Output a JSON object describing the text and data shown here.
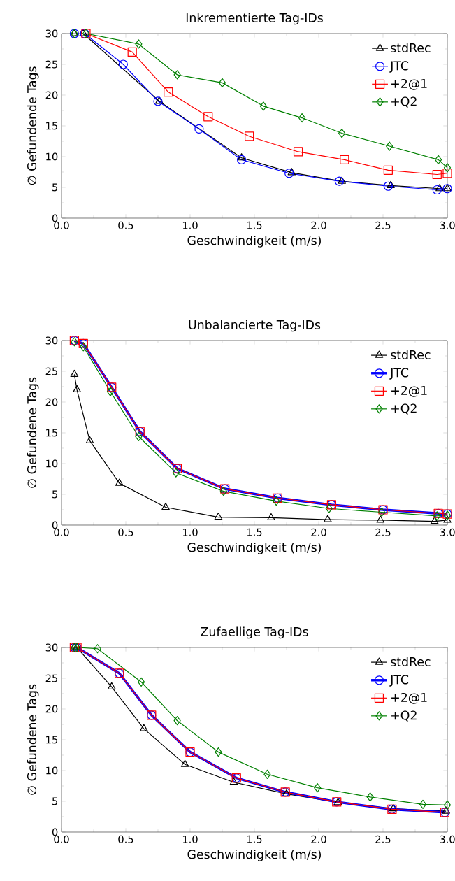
{
  "chart_data": [
    {
      "type": "line",
      "title": "Inkrementierte Tag-IDs",
      "xlabel": "Geschwindigkeit (m/s)",
      "ylabel": "∅ Gefundende Tags",
      "xlim": [
        0,
        3
      ],
      "ylim": [
        0,
        30
      ],
      "xticks": [
        {
          "value": 0,
          "label": "0.0"
        },
        {
          "value": 0.5,
          "label": "0.5"
        },
        {
          "value": 1,
          "label": "1.0"
        },
        {
          "value": 1.5,
          "label": "1.5"
        },
        {
          "value": 2,
          "label": "2.0"
        },
        {
          "value": 2.5,
          "label": "2.5"
        },
        {
          "value": 3,
          "label": "3.0"
        }
      ],
      "yticks": [
        0,
        5,
        10,
        15,
        20,
        25,
        30
      ],
      "legend": "top right",
      "line_style": "solid",
      "series": [
        {
          "name": "stdRec",
          "color": "#000000",
          "marker": "triangle",
          "x": [
            0.1,
            0.17,
            0.76,
            1.4,
            1.79,
            2.18,
            2.56,
            2.94,
            3.0
          ],
          "values": [
            30,
            30,
            19,
            9.8,
            7.4,
            6,
            5.3,
            4.8,
            4.8
          ]
        },
        {
          "name": "JTC",
          "color": "#0000ff",
          "marker": "circle",
          "x": [
            0.1,
            0.18,
            0.48,
            0.75,
            1.07,
            1.4,
            1.77,
            2.16,
            2.54,
            2.92,
            3.0
          ],
          "values": [
            30,
            30,
            25,
            19,
            14.5,
            9.5,
            7.3,
            6,
            5.2,
            4.6,
            4.8
          ]
        },
        {
          "name": "+2@1",
          "color": "#ff0000",
          "marker": "square",
          "x": [
            0.19,
            0.55,
            0.83,
            1.14,
            1.46,
            1.84,
            2.2,
            2.54,
            2.92,
            3.0
          ],
          "values": [
            30,
            27,
            20.5,
            16.5,
            13.3,
            10.8,
            9.5,
            7.8,
            7.1,
            7.3
          ]
        },
        {
          "name": "+Q2",
          "color": "#008000",
          "marker": "diamond",
          "x": [
            0.1,
            0.19,
            0.6,
            0.9,
            1.25,
            1.57,
            1.87,
            2.18,
            2.55,
            2.93,
            3.0
          ],
          "values": [
            30,
            30,
            28.3,
            23.3,
            22,
            18.2,
            16.3,
            13.8,
            11.7,
            9.5,
            8.2
          ]
        }
      ]
    },
    {
      "type": "line",
      "title": "Unbalancierte Tag-IDs",
      "xlabel": "Geschwindigkeit (m/s)",
      "ylabel": "∅ Gefundene Tags",
      "xlim": [
        0,
        3
      ],
      "ylim": [
        0,
        30
      ],
      "xticks": [
        {
          "value": 0,
          "label": "0.0"
        },
        {
          "value": 0.5,
          "label": "0.5"
        },
        {
          "value": 1,
          "label": "1.0"
        },
        {
          "value": 1.5,
          "label": "1.5"
        },
        {
          "value": 2,
          "label": "2.0"
        },
        {
          "value": 2.5,
          "label": "2.5"
        },
        {
          "value": 3,
          "label": "3.0"
        }
      ],
      "yticks": [
        0,
        5,
        10,
        15,
        20,
        25,
        30
      ],
      "legend": "top right",
      "line_style": "solid",
      "series": [
        {
          "name": "stdRec",
          "color": "#000000",
          "marker": "triangle",
          "x": [
            0.1,
            0.12,
            0.22,
            0.45,
            0.81,
            1.22,
            1.63,
            2.07,
            2.48,
            2.9,
            3.0
          ],
          "values": [
            24.5,
            22,
            13.7,
            6.8,
            2.9,
            1.3,
            1.2,
            0.9,
            0.8,
            0.6,
            0.8
          ]
        },
        {
          "name": "JTC",
          "color": "#0000ff",
          "marker": "circle",
          "x": [
            0.1,
            0.17,
            0.39,
            0.61,
            0.9,
            1.27,
            1.68,
            2.1,
            2.5,
            2.93,
            3.0
          ],
          "values": [
            30,
            29.5,
            22.4,
            15.2,
            9.2,
            5.9,
            4.4,
            3.3,
            2.5,
            1.9,
            1.8
          ]
        },
        {
          "name": "+2@1",
          "color": "#ff0000",
          "marker": "square",
          "x": [
            0.1,
            0.17,
            0.39,
            0.61,
            0.9,
            1.27,
            1.68,
            2.1,
            2.5,
            2.93,
            3.0
          ],
          "values": [
            30,
            29.5,
            22.4,
            15.2,
            9.2,
            5.9,
            4.4,
            3.3,
            2.5,
            1.9,
            1.8
          ]
        },
        {
          "name": "+Q2",
          "color": "#008000",
          "marker": "diamond",
          "x": [
            0.1,
            0.17,
            0.38,
            0.6,
            0.89,
            1.26,
            1.67,
            2.08,
            2.49,
            2.92,
            3.0
          ],
          "values": [
            29.8,
            29,
            21.7,
            14.4,
            8.5,
            5.5,
            3.9,
            2.7,
            2.1,
            1.5,
            1.6
          ]
        }
      ]
    },
    {
      "type": "line",
      "title": "Zufaellige Tag-IDs",
      "xlabel": "Geschwindigkeit (m/s)",
      "ylabel": "∅ Gefundene Tags",
      "xlim": [
        0,
        3
      ],
      "ylim": [
        0,
        30
      ],
      "xticks": [
        {
          "value": 0,
          "label": "0.0"
        },
        {
          "value": 0.5,
          "label": "0.5"
        },
        {
          "value": 1,
          "label": "1.0"
        },
        {
          "value": 1.5,
          "label": "1.5"
        },
        {
          "value": 2,
          "label": "2.0"
        },
        {
          "value": 2.5,
          "label": "2.5"
        },
        {
          "value": 3,
          "label": "3.0"
        }
      ],
      "yticks": [
        0,
        5,
        10,
        15,
        20,
        25,
        30
      ],
      "legend": "top right",
      "line_style": "solid",
      "series": [
        {
          "name": "stdRec",
          "color": "#000000",
          "marker": "triangle",
          "x": [
            0.1,
            0.12,
            0.39,
            0.64,
            0.96,
            1.34,
            1.75,
            2.15,
            2.58,
            2.99
          ],
          "values": [
            30,
            30,
            23.6,
            16.8,
            11,
            8.1,
            6.2,
            4.8,
            3.8,
            3.4
          ]
        },
        {
          "name": "JTC",
          "color": "#0000ff",
          "marker": "circle",
          "x": [
            0.1,
            0.12,
            0.45,
            0.7,
            1.0,
            1.36,
            1.74,
            2.14,
            2.57,
            2.98
          ],
          "values": [
            30,
            30,
            25.8,
            19,
            13,
            8.8,
            6.5,
            4.9,
            3.7,
            3.2
          ]
        },
        {
          "name": "+2@1",
          "color": "#ff0000",
          "marker": "square",
          "x": [
            0.1,
            0.12,
            0.45,
            0.7,
            1.0,
            1.36,
            1.74,
            2.14,
            2.57,
            2.98
          ],
          "values": [
            30,
            30,
            25.8,
            19,
            13,
            8.8,
            6.5,
            4.9,
            3.7,
            3.2
          ]
        },
        {
          "name": "+Q2",
          "color": "#008000",
          "marker": "diamond",
          "x": [
            0.1,
            0.12,
            0.28,
            0.62,
            0.9,
            1.22,
            1.6,
            1.99,
            2.4,
            2.81,
            3.0
          ],
          "values": [
            30,
            30,
            29.8,
            24.4,
            18.1,
            13,
            9.4,
            7.2,
            5.7,
            4.5,
            4.4
          ]
        }
      ]
    }
  ]
}
